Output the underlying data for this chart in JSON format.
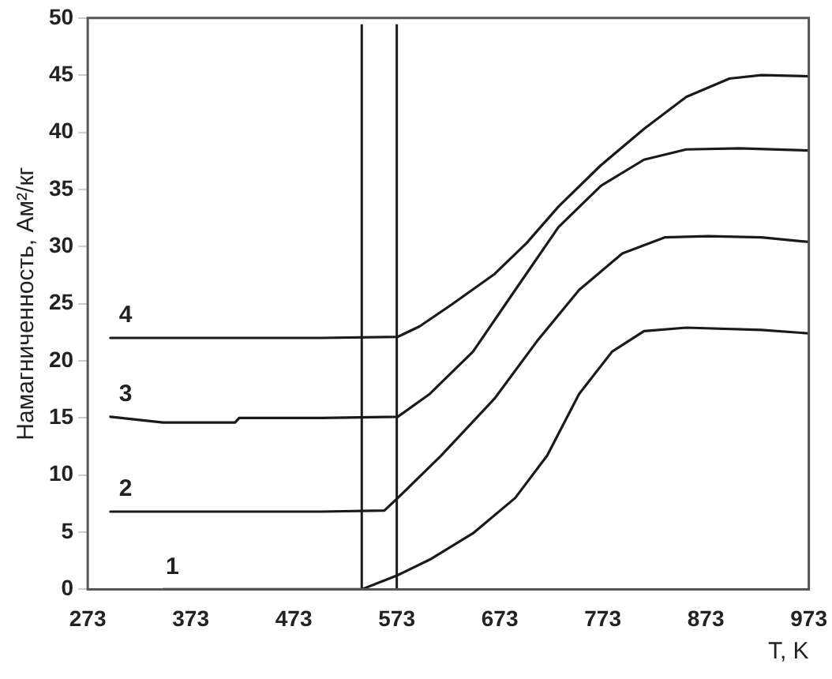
{
  "chart_data": {
    "type": "line",
    "xlabel": "T, K",
    "ylabel": "Намагниченность, Ам²/кг",
    "xlim": [
      273,
      973
    ],
    "xticks": [
      273,
      373,
      473,
      573,
      673,
      773,
      873,
      973
    ],
    "ylim": [
      0,
      50
    ],
    "yticks": [
      0,
      5,
      10,
      15,
      20,
      25,
      30,
      35,
      40,
      45,
      50
    ],
    "grid": false,
    "legend": false,
    "marker": "none",
    "line_style": "solid",
    "series": [
      {
        "name": "1",
        "color": "#1a1a1a",
        "x": [
          346,
          400,
          450,
          500,
          539,
          573,
          605,
          647,
          688,
          719,
          750,
          782,
          813,
          854,
          927,
          973
        ],
        "values": [
          0,
          0,
          0,
          0,
          0,
          1.2,
          2.6,
          4.9,
          8.0,
          11.7,
          17.1,
          20.8,
          22.6,
          22.9,
          22.7,
          22.4
        ]
      },
      {
        "name": "2",
        "color": "#1a1a1a",
        "x": [
          295,
          400,
          500,
          561,
          574,
          616,
          668,
          709,
          750,
          792,
          833,
          875,
          927,
          973
        ],
        "values": [
          6.8,
          6.8,
          6.8,
          6.9,
          8.0,
          11.7,
          16.7,
          21.7,
          26.2,
          29.4,
          30.8,
          30.9,
          30.8,
          30.4
        ]
      },
      {
        "name": "3",
        "color": "#1a1a1a",
        "x": [
          295,
          346,
          416,
          420,
          500,
          574,
          605,
          647,
          688,
          730,
          771,
          813,
          854,
          906,
          973
        ],
        "values": [
          15.1,
          14.6,
          14.6,
          15.0,
          15.0,
          15.1,
          17.1,
          20.8,
          26.2,
          31.7,
          35.3,
          37.6,
          38.5,
          38.6,
          38.4
        ]
      },
      {
        "name": "4",
        "color": "#1a1a1a",
        "x": [
          295,
          400,
          500,
          574,
          595,
          626,
          668,
          699,
          730,
          771,
          813,
          854,
          896,
          927,
          973
        ],
        "values": [
          22,
          22,
          22,
          22.1,
          23.0,
          24.9,
          27.6,
          30.3,
          33.5,
          37.1,
          40.3,
          43.1,
          44.7,
          45.0,
          44.9
        ]
      }
    ],
    "ref_lines": [
      {
        "axis": "x",
        "value": 539,
        "color": "#1a1a1a"
      },
      {
        "axis": "x",
        "value": 573,
        "color": "#1a1a1a"
      }
    ]
  }
}
